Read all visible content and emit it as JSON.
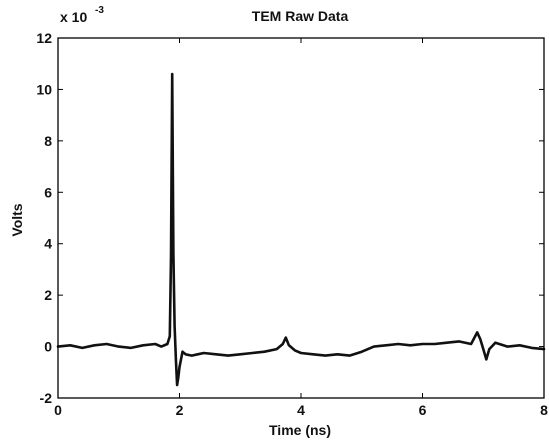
{
  "chart_data": {
    "type": "line",
    "title": "TEM Raw Data",
    "xlabel": "Time (ns)",
    "ylabel": "Volts",
    "y_multiplier_label": "x 10",
    "y_multiplier_exponent": "-3",
    "xlim": [
      0,
      8
    ],
    "ylim": [
      -2,
      12
    ],
    "x_ticks": [
      0,
      2,
      4,
      6,
      8
    ],
    "y_ticks": [
      -2,
      0,
      2,
      4,
      6,
      8,
      10,
      12
    ],
    "grid": false,
    "series": [
      {
        "x": [
          0.0,
          0.2,
          0.4,
          0.6,
          0.8,
          1.0,
          1.2,
          1.4,
          1.6,
          1.7,
          1.8,
          1.84,
          1.86,
          1.88,
          1.9,
          1.92,
          1.94,
          1.96,
          1.98,
          2.0,
          2.05,
          2.1,
          2.2,
          2.3,
          2.4,
          2.6,
          2.8,
          3.0,
          3.2,
          3.4,
          3.6,
          3.7,
          3.75,
          3.8,
          3.9,
          4.0,
          4.2,
          4.4,
          4.6,
          4.8,
          5.0,
          5.2,
          5.4,
          5.6,
          5.8,
          6.0,
          6.2,
          6.4,
          6.6,
          6.8,
          6.9,
          6.95,
          7.0,
          7.05,
          7.1,
          7.2,
          7.4,
          7.6,
          7.8,
          8.0
        ],
        "y": [
          0.0,
          0.05,
          -0.05,
          0.05,
          0.1,
          0.0,
          -0.05,
          0.05,
          0.1,
          0.0,
          0.1,
          0.4,
          3.5,
          10.6,
          3.6,
          0.8,
          -0.5,
          -1.5,
          -1.2,
          -0.8,
          -0.2,
          -0.3,
          -0.35,
          -0.3,
          -0.25,
          -0.3,
          -0.35,
          -0.3,
          -0.25,
          -0.2,
          -0.1,
          0.1,
          0.35,
          0.05,
          -0.15,
          -0.25,
          -0.3,
          -0.35,
          -0.3,
          -0.35,
          -0.2,
          0.0,
          0.05,
          0.1,
          0.05,
          0.1,
          0.1,
          0.15,
          0.2,
          0.1,
          0.55,
          0.3,
          -0.1,
          -0.5,
          -0.1,
          0.15,
          0.0,
          0.05,
          -0.05,
          -0.1
        ]
      }
    ]
  }
}
